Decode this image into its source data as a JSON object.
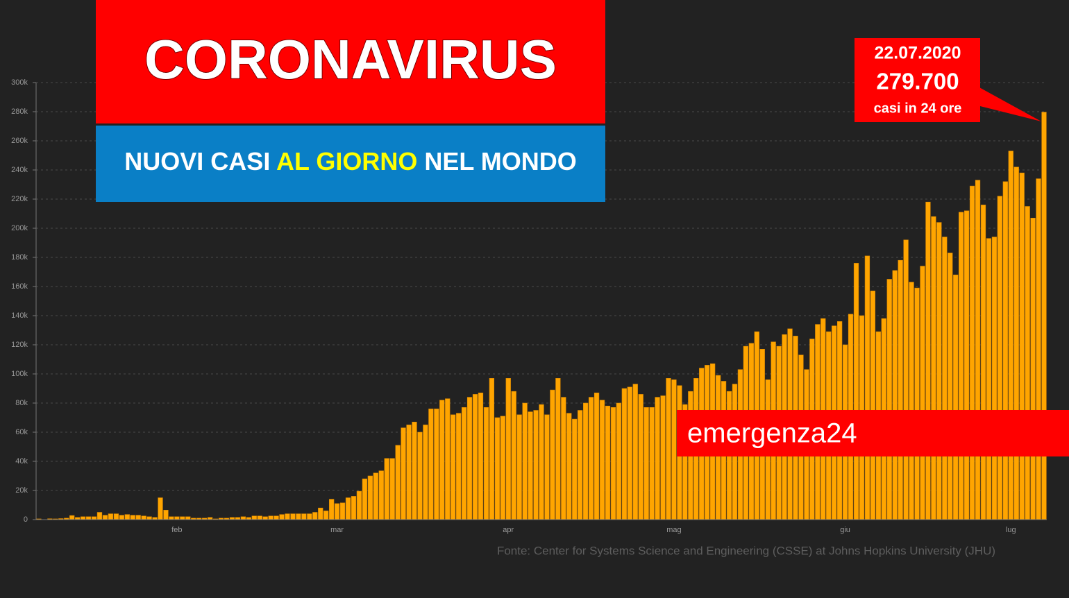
{
  "chart_data": {
    "type": "bar",
    "title": "CORONAVIRUS",
    "subtitle": [
      "NUOVI CASI",
      "AL GIORNO",
      "NEL MONDO"
    ],
    "annotation": [
      "22.07.2020",
      "279.700",
      "casi in 24 ore"
    ],
    "brand": "emergenza24",
    "source": "Fonte: Center for Systems Science and Engineering (CSSE) at Johns Hopkins University (JHU)",
    "color": "#ffa500",
    "grid": true,
    "ylim": [
      0,
      300000
    ],
    "yticks": [
      0,
      {
        "value": 20000,
        "label": "20k"
      },
      {
        "value": 40000,
        "label": "40k"
      },
      {
        "value": 60000,
        "label": "60k"
      },
      {
        "value": 80000,
        "label": "80k"
      },
      {
        "value": 100000,
        "label": "100k"
      },
      {
        "value": 120000,
        "label": "120k"
      },
      {
        "value": 140000,
        "label": "140k"
      },
      {
        "value": 160000,
        "label": "160k"
      },
      {
        "value": 180000,
        "label": "180k"
      },
      {
        "value": 200000,
        "label": "200k"
      },
      {
        "value": 220000,
        "label": "220k"
      },
      {
        "value": 240000,
        "label": "240k"
      },
      {
        "value": 260000,
        "label": "260k"
      },
      {
        "value": 280000,
        "label": "280k"
      },
      {
        "value": 300000,
        "label": "300k"
      }
    ],
    "categories": [
      null,
      null,
      null,
      null,
      null,
      null,
      null,
      null,
      null,
      null,
      null,
      null,
      null,
      null,
      null,
      null,
      null,
      null,
      null,
      null,
      null,
      null,
      null,
      null,
      null,
      "feb",
      null,
      null,
      null,
      null,
      null,
      null,
      null,
      null,
      null,
      null,
      null,
      null,
      null,
      null,
      null,
      null,
      null,
      null,
      null,
      null,
      null,
      null,
      null,
      null,
      null,
      null,
      null,
      null,
      "mar",
      null,
      null,
      null,
      null,
      null,
      null,
      null,
      null,
      null,
      null,
      null,
      null,
      null,
      null,
      null,
      null,
      null,
      null,
      null,
      null,
      null,
      null,
      null,
      null,
      null,
      null,
      null,
      null,
      null,
      null,
      "apr",
      null,
      null,
      null,
      null,
      null,
      null,
      null,
      null,
      null,
      null,
      null,
      null,
      null,
      null,
      null,
      null,
      null,
      null,
      null,
      null,
      null,
      null,
      null,
      null,
      null,
      null,
      null,
      null,
      null,
      "mag",
      null,
      null,
      null,
      null,
      null,
      null,
      null,
      null,
      null,
      null,
      null,
      null,
      null,
      null,
      null,
      null,
      null,
      null,
      null,
      null,
      null,
      null,
      null,
      null,
      null,
      null,
      null,
      null,
      null,
      null,
      "giu",
      null,
      null,
      null,
      null,
      null,
      null,
      null,
      null,
      null,
      null,
      null,
      null,
      null,
      null,
      null,
      null,
      null,
      null,
      null,
      null,
      null,
      null,
      null,
      null,
      null,
      null,
      null,
      null,
      null,
      "lug",
      null,
      null,
      null,
      null,
      null,
      null
    ],
    "values": [
      500,
      100,
      600,
      500,
      700,
      1000,
      2800,
      1500,
      2000,
      2000,
      2000,
      5000,
      3000,
      4000,
      4000,
      3000,
      3500,
      3000,
      3000,
      2500,
      2000,
      1500,
      15000,
      6500,
      2000,
      2000,
      2000,
      2000,
      1000,
      1000,
      1000,
      1500,
      500,
      1000,
      1000,
      1500,
      1500,
      2000,
      1500,
      2500,
      2500,
      2000,
      2500,
      2500,
      3500,
      4000,
      4000,
      4000,
      4000,
      4000,
      5000,
      8000,
      6000,
      14000,
      11000,
      11500,
      15000,
      16000,
      19500,
      28000,
      30000,
      32000,
      33500,
      42000,
      42000,
      51000,
      63000,
      65000,
      67000,
      60000,
      65000,
      76000,
      76000,
      82000,
      83000,
      72000,
      73000,
      77000,
      84000,
      86000,
      87000,
      77000,
      97000,
      70000,
      71000,
      97000,
      88000,
      72000,
      80000,
      74000,
      75000,
      79000,
      72000,
      89000,
      97000,
      84000,
      73000,
      69000,
      75000,
      80000,
      84000,
      87000,
      82000,
      78000,
      77000,
      80000,
      90000,
      91000,
      93000,
      86000,
      77000,
      77000,
      84000,
      85000,
      97000,
      96000,
      92000,
      79000,
      88000,
      97000,
      104000,
      106000,
      107000,
      99000,
      95000,
      88000,
      93000,
      103000,
      119000,
      121000,
      129000,
      117000,
      96000,
      122000,
      119000,
      127000,
      131000,
      126000,
      113000,
      103000,
      124000,
      134000,
      138000,
      129000,
      133000,
      136000,
      120000,
      141000,
      176000,
      140000,
      181000,
      157000,
      129000,
      138000,
      165000,
      171000,
      178000,
      192000,
      163000,
      159000,
      174000,
      218000,
      208000,
      204000,
      194000,
      183000,
      168000,
      211000,
      212000,
      229000,
      233000,
      216000,
      193000,
      194000,
      222000,
      232000,
      253000,
      242000,
      238000,
      215000,
      207000,
      234000,
      279700
    ]
  }
}
